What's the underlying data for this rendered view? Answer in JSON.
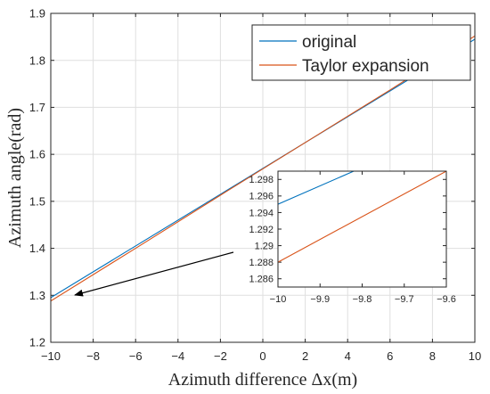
{
  "chart_data": [
    {
      "type": "line",
      "xlabel": "Azimuth difference Δx(m)",
      "ylabel": "Azimuth angle(rad)",
      "xlim": [
        -10,
        10
      ],
      "ylim": [
        1.2,
        1.9
      ],
      "xticks": [
        -10,
        -8,
        -6,
        -4,
        -2,
        0,
        2,
        4,
        6,
        8,
        10
      ],
      "yticks": [
        1.2,
        1.3,
        1.4,
        1.5,
        1.6,
        1.7,
        1.8,
        1.9
      ],
      "xtick_labels": [
        "−10",
        "−8",
        "−6",
        "−4",
        "−2",
        "0",
        "2",
        "4",
        "6",
        "8",
        "10"
      ],
      "ytick_labels": [
        "1.2",
        "1.3",
        "1.4",
        "1.5",
        "1.6",
        "1.7",
        "1.8",
        "1.9"
      ],
      "grid": true,
      "legend_position": "top-right",
      "series": [
        {
          "name": "original",
          "color": "#0072BD",
          "x": [
            -10,
            -6,
            -2,
            2,
            6,
            10
          ],
          "y": [
            1.295,
            1.405,
            1.515,
            1.625,
            1.735,
            1.845
          ]
        },
        {
          "name": "Taylor expansion",
          "color": "#D95319",
          "x": [
            -10,
            -6,
            -2,
            2,
            6,
            10
          ],
          "y": [
            1.288,
            1.4,
            1.513,
            1.625,
            1.737,
            1.852
          ]
        }
      ]
    },
    {
      "type": "line",
      "xlim": [
        -10,
        -9.6
      ],
      "ylim": [
        1.285,
        1.299
      ],
      "xticks": [
        -10,
        -9.9,
        -9.8,
        -9.7,
        -9.6
      ],
      "yticks": [
        1.286,
        1.288,
        1.29,
        1.292,
        1.294,
        1.296,
        1.298
      ],
      "xtick_labels": [
        "−10",
        "−9.9",
        "−9.8",
        "−9.7",
        "−9.6"
      ],
      "ytick_labels": [
        "1.286",
        "1.288",
        "1.29",
        "1.292",
        "1.294",
        "1.296",
        "1.298"
      ],
      "grid": false,
      "series": [
        {
          "color": "#0072BD",
          "x": [
            -10,
            -9.82
          ],
          "y": [
            1.295,
            1.299
          ]
        },
        {
          "color": "#D95319",
          "x": [
            -10,
            -9.6
          ],
          "y": [
            1.288,
            1.299
          ]
        }
      ]
    }
  ]
}
